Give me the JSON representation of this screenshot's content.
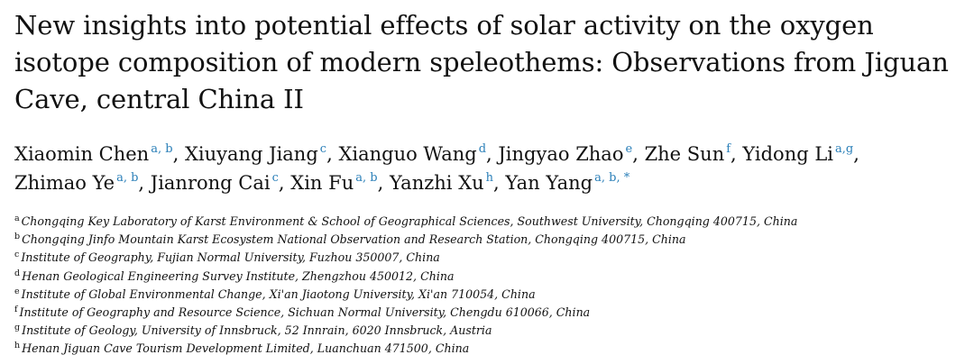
{
  "paper": {
    "title": "New insights into potential effects of solar activity on the oxygen isotope composition of modern speleothems: Observations from Jiguan Cave, central China II",
    "authors": [
      {
        "name": "Xiaomin Chen",
        "affiliation_marks": "a, b",
        "separator": ","
      },
      {
        "name": "Xiuyang Jiang",
        "affiliation_marks": "c",
        "separator": ","
      },
      {
        "name": "Xianguo Wang",
        "affiliation_marks": "d",
        "separator": ","
      },
      {
        "name": "Jingyao Zhao",
        "affiliation_marks": "e",
        "separator": ","
      },
      {
        "name": "Zhe Sun",
        "affiliation_marks": "f",
        "separator": ","
      },
      {
        "name": "Yidong Li",
        "affiliation_marks": "a,g",
        "separator": ","
      },
      {
        "name": "Zhimao Ye",
        "affiliation_marks": "a, b",
        "separator": ","
      },
      {
        "name": "Jianrong Cai",
        "affiliation_marks": "c",
        "separator": ","
      },
      {
        "name": "Xin Fu",
        "affiliation_marks": "a, b",
        "separator": ","
      },
      {
        "name": "Yanzhi Xu",
        "affiliation_marks": "h",
        "separator": ","
      },
      {
        "name": "Yan Yang",
        "affiliation_marks": "a, b, *",
        "separator": ""
      }
    ],
    "affiliations": [
      {
        "mark": "a",
        "text": "Chongqing Key Laboratory of Karst Environment & School of Geographical Sciences, Southwest University, Chongqing 400715, China"
      },
      {
        "mark": "b",
        "text": "Chongqing Jinfo Mountain Karst Ecosystem National Observation and Research Station, Chongqing 400715, China"
      },
      {
        "mark": "c",
        "text": "Institute of Geography, Fujian Normal University, Fuzhou 350007, China"
      },
      {
        "mark": "d",
        "text": "Henan Geological Engineering Survey Institute, Zhengzhou 450012, China"
      },
      {
        "mark": "e",
        "text": "Institute of Global Environmental Change, Xi'an Jiaotong University, Xi'an 710054, China"
      },
      {
        "mark": "f",
        "text": "Institute of Geography and Resource Science, Sichuan Normal University, Chengdu 610066, China"
      },
      {
        "mark": "g",
        "text": "Institute of Geology, University of Innsbruck, 52 Innrain, 6020 Innsbruck, Austria"
      },
      {
        "mark": "h",
        "text": "Henan Jiguan Cave Tourism Development Limited, Luanchuan 471500, China"
      }
    ],
    "colors": {
      "link": "#2a7fb8",
      "text": "#111111"
    }
  }
}
